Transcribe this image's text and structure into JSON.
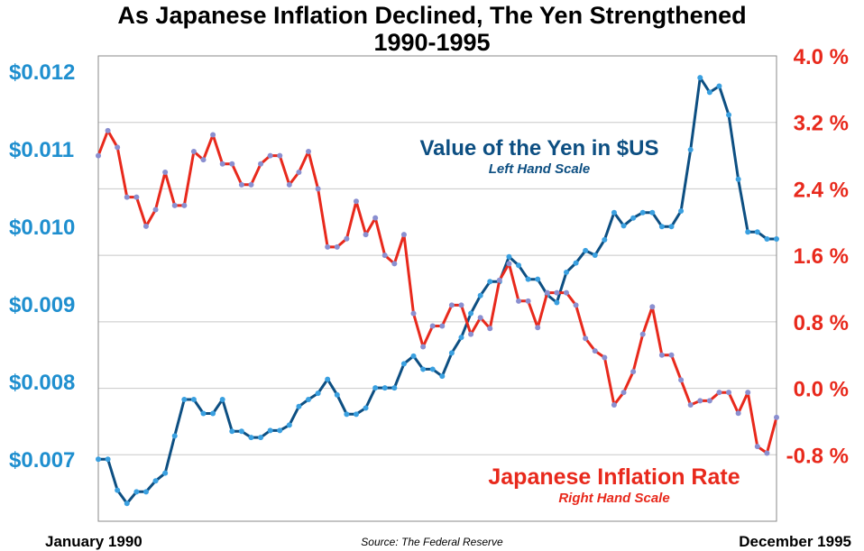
{
  "chart_data": {
    "type": "line",
    "title": "As Japanese Inflation Declined, The Yen Strengthened",
    "subtitle": "1990-1995",
    "x_start_label": "January 1990",
    "x_end_label": "December 1995",
    "source": "Source: The Federal Reserve",
    "grid": true,
    "left_axis": {
      "ylim": [
        0.0062,
        0.0122
      ],
      "ticks": [
        0.012,
        0.011,
        0.01,
        0.009,
        0.008,
        0.007
      ],
      "tick_labels": [
        "$0.012",
        "$0.011",
        "$0.010",
        "$0.009",
        "$0.008",
        "$0.007"
      ],
      "color": "#1f8fcf"
    },
    "right_axis": {
      "ylim": [
        -1.6,
        4.0
      ],
      "ticks": [
        4.0,
        3.2,
        2.4,
        1.6,
        0.8,
        0.0,
        -0.8
      ],
      "tick_labels": [
        "4.0 %",
        "3.2 %",
        "2.4 %",
        "1.6 %",
        "0.8 %",
        "0.0 %",
        "-0.8 %"
      ],
      "color": "#e8291c"
    },
    "series": [
      {
        "name": "Value of the Yen in $US",
        "subtitle": "Left Hand Scale",
        "axis": "left",
        "color": "#0d4f82",
        "marker_color": "#3aa0e0",
        "values": [
          0.007,
          0.007,
          0.0066,
          0.00643,
          0.00658,
          0.00658,
          0.00672,
          0.00682,
          0.0073,
          0.00777,
          0.00777,
          0.00759,
          0.00759,
          0.00777,
          0.00736,
          0.00736,
          0.00728,
          0.00728,
          0.00737,
          0.00737,
          0.00744,
          0.00768,
          0.00777,
          0.00785,
          0.00803,
          0.00783,
          0.00758,
          0.00758,
          0.00766,
          0.00792,
          0.00792,
          0.00792,
          0.00823,
          0.00833,
          0.00816,
          0.00816,
          0.00807,
          0.00837,
          0.00857,
          0.00888,
          0.00911,
          0.00929,
          0.00929,
          0.00961,
          0.0095,
          0.00932,
          0.00932,
          0.00912,
          0.00902,
          0.00941,
          0.00953,
          0.00969,
          0.00963,
          0.00983,
          0.01018,
          0.01001,
          0.01011,
          0.01018,
          0.01018,
          0.01,
          0.01,
          0.0102,
          0.01099,
          0.01192,
          0.01173,
          0.01181,
          0.01144,
          0.01061,
          0.00993,
          0.00993,
          0.00984,
          0.00984
        ]
      },
      {
        "name": "Japanese Inflation Rate",
        "subtitle": "Right Hand Scale",
        "axis": "right",
        "color": "#e8291c",
        "marker_color": "#8a8fd0",
        "values": [
          2.8,
          3.1,
          2.9,
          2.3,
          2.3,
          1.95,
          2.15,
          2.6,
          2.2,
          2.2,
          2.85,
          2.75,
          3.05,
          2.7,
          2.7,
          2.45,
          2.45,
          2.7,
          2.8,
          2.8,
          2.45,
          2.6,
          2.85,
          2.4,
          1.7,
          1.7,
          1.8,
          2.25,
          1.85,
          2.05,
          1.6,
          1.5,
          1.85,
          0.9,
          0.5,
          0.75,
          0.75,
          1.0,
          1.0,
          0.65,
          0.85,
          0.72,
          1.3,
          1.5,
          1.05,
          1.05,
          0.73,
          1.15,
          1.15,
          1.15,
          1.0,
          0.6,
          0.45,
          0.37,
          -0.2,
          -0.05,
          0.2,
          0.65,
          0.98,
          0.4,
          0.4,
          0.1,
          -0.2,
          -0.15,
          -0.15,
          -0.05,
          -0.05,
          -0.3,
          -0.05,
          -0.7,
          -0.78,
          -0.35
        ]
      }
    ]
  }
}
